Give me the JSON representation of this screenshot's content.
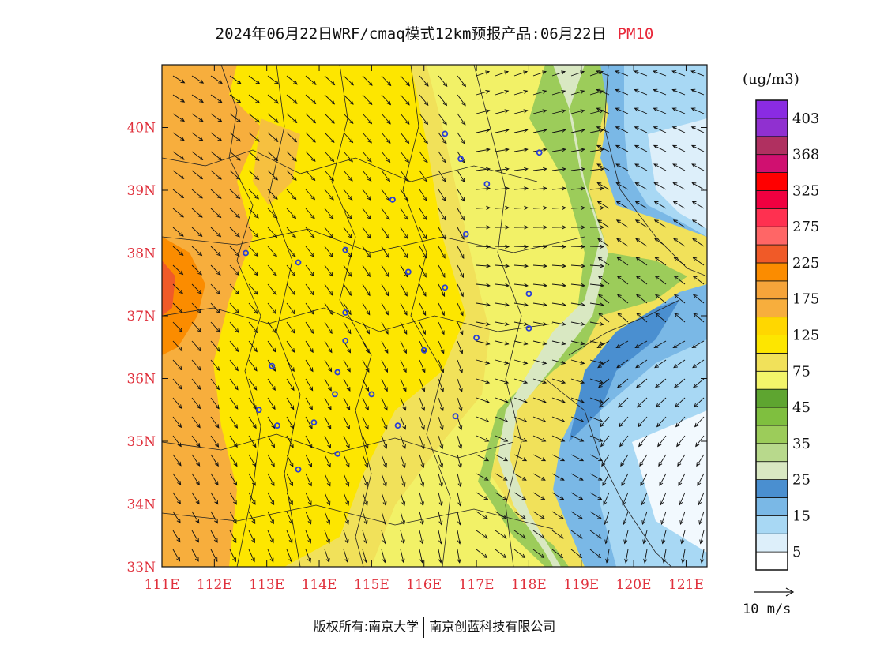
{
  "title": {
    "main": "2024年06月22日WRF/cmaq模式12km预报产品:06月22日",
    "pollutant": "PM10"
  },
  "map": {
    "lon_range": [
      111.0,
      121.4
    ],
    "lat_range": [
      33.0,
      41.0
    ],
    "x_ticks": [
      "111E",
      "112E",
      "113E",
      "114E",
      "115E",
      "116E",
      "117E",
      "118E",
      "119E",
      "120E",
      "121E"
    ],
    "y_ticks": [
      "33N",
      "34N",
      "35N",
      "36N",
      "37N",
      "38N",
      "39N",
      "40N"
    ],
    "label_color": "#e0303c"
  },
  "colorbar": {
    "unit": "(ug/m3)",
    "colors": [
      "#ffffff",
      "#ddeffa",
      "#a8d8f4",
      "#7ab8e6",
      "#4a8fd0",
      "#d9e8c2",
      "#b8d98c",
      "#9ccc5a",
      "#7fbf3f",
      "#5ea530",
      "#f3f56a",
      "#f1e15a",
      "#fde600",
      "#ffd700",
      "#f7ae3d",
      "#f6a43a",
      "#fb8c00",
      "#f05a28",
      "#ff6666",
      "#ff3050",
      "#f00040",
      "#ff0000",
      "#d01070",
      "#b03060",
      "#9030d0",
      "#8a2be2"
    ],
    "labels": [
      "5",
      "15",
      "25",
      "35",
      "45",
      "75",
      "125",
      "175",
      "225",
      "275",
      "325",
      "368",
      "403"
    ]
  },
  "wind_reference": "10 m/s",
  "footer": {
    "copyright": "版权所有:南京大学",
    "company": "南京创蓝科技有限公司"
  },
  "cities": [
    {
      "lon": 112.6,
      "lat": 38.0
    },
    {
      "lon": 113.6,
      "lat": 37.85
    },
    {
      "lon": 114.5,
      "lat": 38.05
    },
    {
      "lon": 115.4,
      "lat": 38.85
    },
    {
      "lon": 115.7,
      "lat": 37.7
    },
    {
      "lon": 116.4,
      "lat": 37.45
    },
    {
      "lon": 116.4,
      "lat": 39.9
    },
    {
      "lon": 116.7,
      "lat": 39.5
    },
    {
      "lon": 117.2,
      "lat": 39.1
    },
    {
      "lon": 116.8,
      "lat": 38.3
    },
    {
      "lon": 118.2,
      "lat": 39.6
    },
    {
      "lon": 114.5,
      "lat": 37.05
    },
    {
      "lon": 114.5,
      "lat": 36.6
    },
    {
      "lon": 116.0,
      "lat": 36.45
    },
    {
      "lon": 117.0,
      "lat": 36.65
    },
    {
      "lon": 118.0,
      "lat": 37.35
    },
    {
      "lon": 118.0,
      "lat": 36.8
    },
    {
      "lon": 113.1,
      "lat": 36.2
    },
    {
      "lon": 114.35,
      "lat": 36.1
    },
    {
      "lon": 114.3,
      "lat": 35.75
    },
    {
      "lon": 115.0,
      "lat": 35.75
    },
    {
      "lon": 112.85,
      "lat": 35.5
    },
    {
      "lon": 113.2,
      "lat": 35.25
    },
    {
      "lon": 113.9,
      "lat": 35.3
    },
    {
      "lon": 114.35,
      "lat": 34.8
    },
    {
      "lon": 113.6,
      "lat": 34.55
    },
    {
      "lon": 115.5,
      "lat": 35.25
    },
    {
      "lon": 116.6,
      "lat": 35.4
    }
  ]
}
